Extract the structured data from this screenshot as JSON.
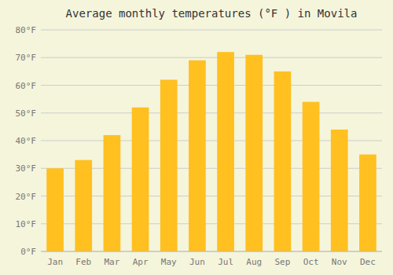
{
  "chart_data": {
    "type": "bar",
    "title": "Average monthly temperatures (°F ) in Movila",
    "categories": [
      "Jan",
      "Feb",
      "Mar",
      "Apr",
      "May",
      "Jun",
      "Jul",
      "Aug",
      "Sep",
      "Oct",
      "Nov",
      "Dec"
    ],
    "values": [
      30,
      33,
      42,
      52,
      62,
      69,
      72,
      71,
      65,
      54,
      44,
      35
    ],
    "color": "#FFC020",
    "ylim": [
      0,
      80
    ],
    "yticks": [
      {
        "value": 0,
        "label": "0°F"
      },
      {
        "value": 10,
        "label": "10°F"
      },
      {
        "value": 20,
        "label": "20°F"
      },
      {
        "value": 30,
        "label": "30°F"
      },
      {
        "value": 40,
        "label": "40°F"
      },
      {
        "value": 50,
        "label": "50°F"
      },
      {
        "value": 60,
        "label": "60°F"
      },
      {
        "value": 70,
        "label": "70°F"
      },
      {
        "value": 80,
        "label": "80°F"
      }
    ],
    "grid": true
  }
}
